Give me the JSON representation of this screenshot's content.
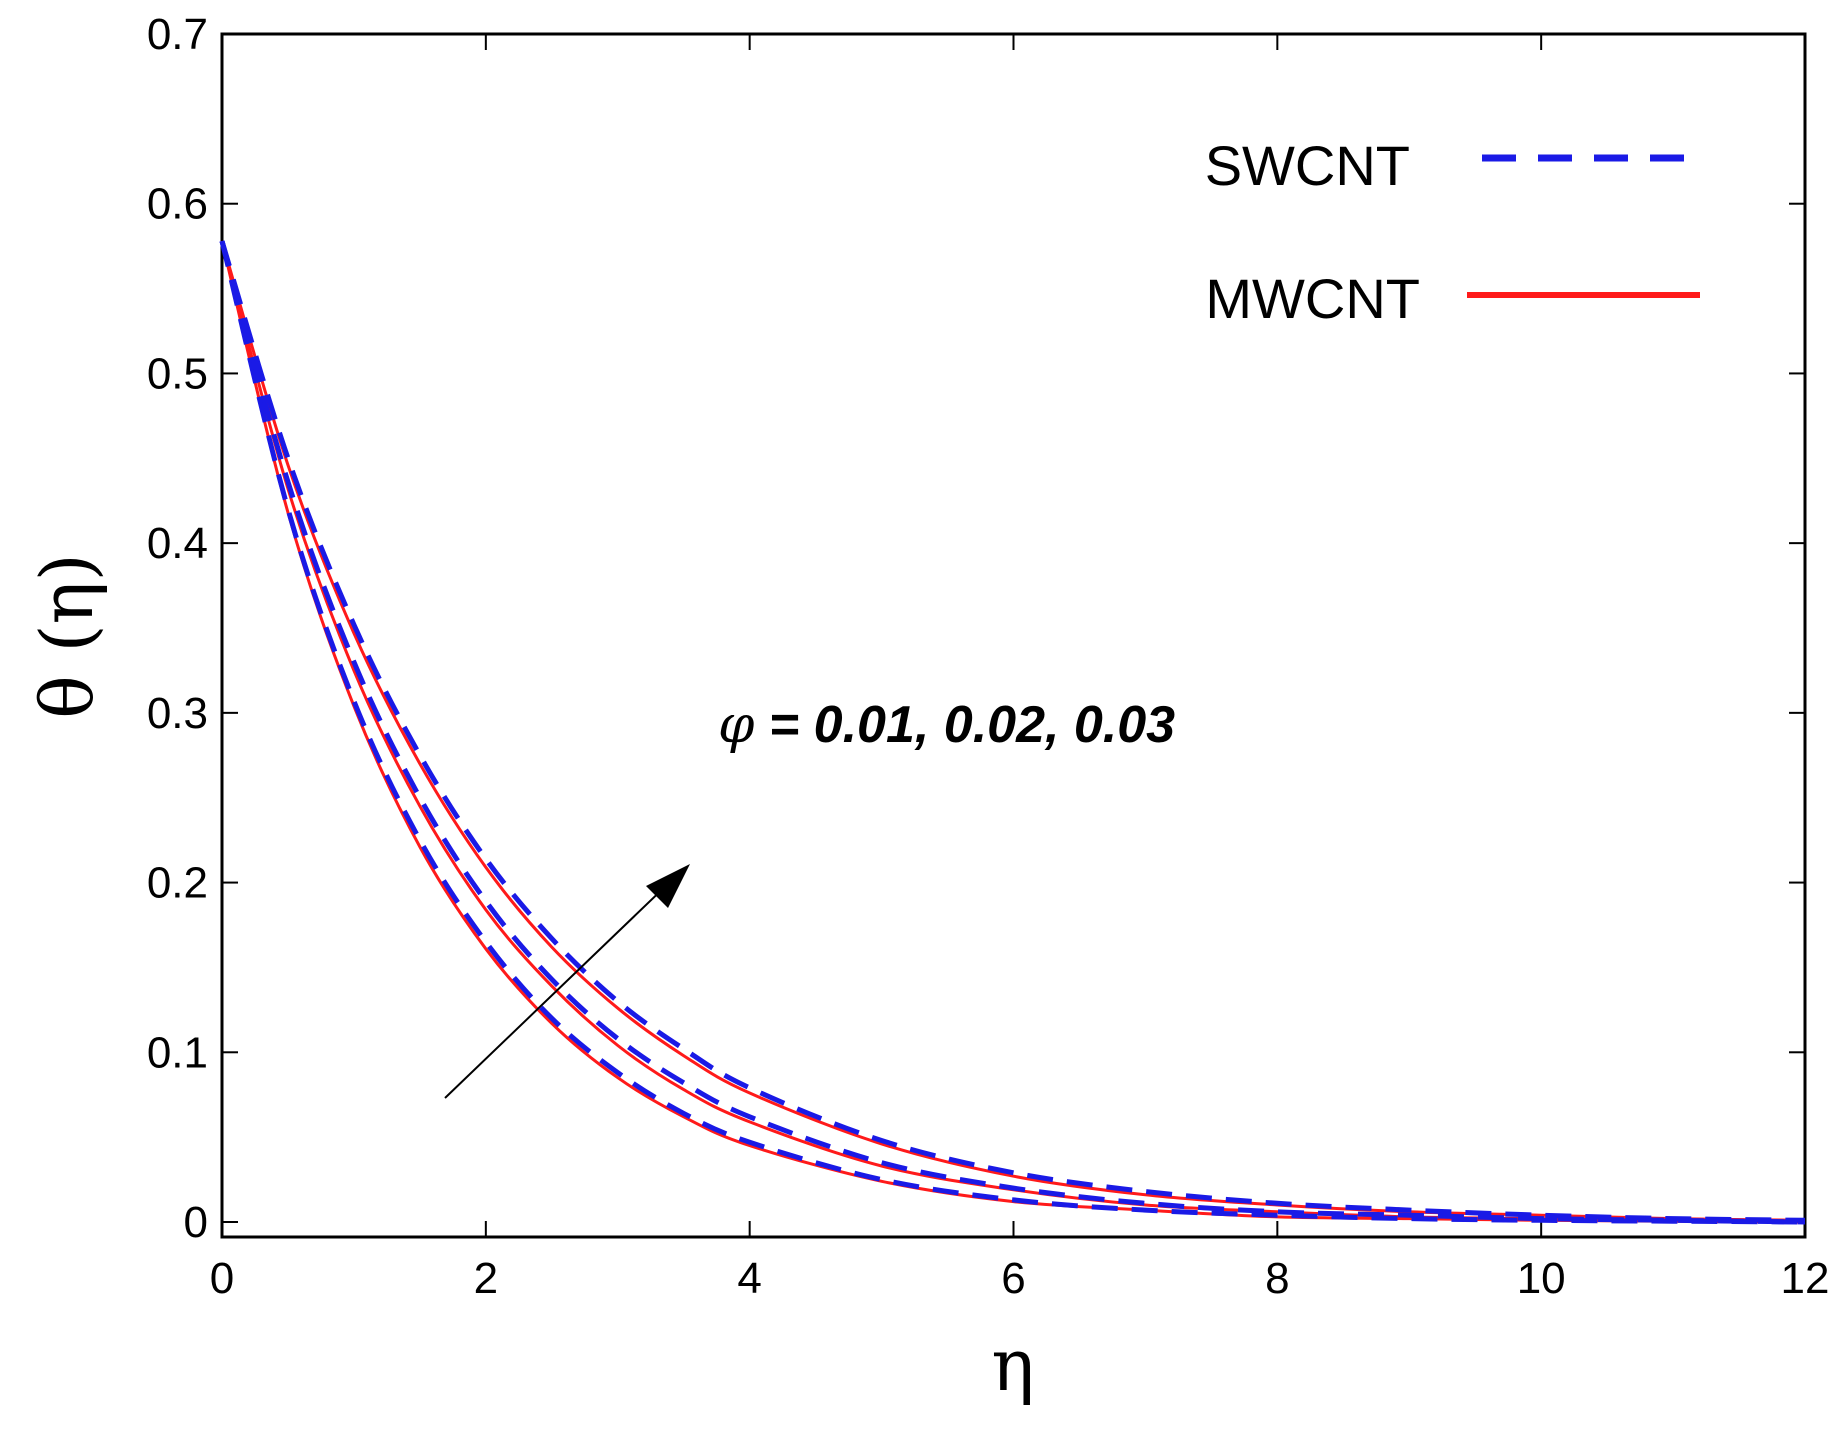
{
  "chart_data": {
    "type": "line",
    "xlabel": "η",
    "ylabel": "θ (η)",
    "xlim": [
      0,
      12
    ],
    "ylim": [
      0,
      0.7
    ],
    "xticks": [
      "0",
      "2",
      "4",
      "6",
      "8",
      "10",
      "12"
    ],
    "yticks": [
      "0",
      "0.1",
      "0.2",
      "0.3",
      "0.4",
      "0.5",
      "0.6",
      "0.7"
    ],
    "grid": false,
    "legend_position": "top-right",
    "annotation": {
      "symbol": "φ",
      "text": " = 0.01, 0.02, 0.03",
      "arrow": "increasing"
    },
    "x": [
      0,
      0.5,
      1,
      1.5,
      2,
      2.5,
      3,
      3.5,
      4,
      5,
      6,
      7,
      8,
      9,
      10,
      11,
      12
    ],
    "series": [
      {
        "name": "SWCNT",
        "style": "dashed",
        "color": "#1a1ae6",
        "curves": [
          [
            0.578,
            0.42,
            0.307,
            0.225,
            0.165,
            0.12,
            0.088,
            0.064,
            0.047,
            0.025,
            0.013,
            0.007,
            0.004,
            0.002,
            0.001,
            0.0005,
            0.0
          ],
          [
            0.578,
            0.436,
            0.33,
            0.25,
            0.189,
            0.143,
            0.108,
            0.082,
            0.062,
            0.035,
            0.02,
            0.011,
            0.006,
            0.004,
            0.002,
            0.001,
            0.0
          ],
          [
            0.578,
            0.45,
            0.352,
            0.275,
            0.214,
            0.167,
            0.13,
            0.102,
            0.079,
            0.048,
            0.029,
            0.018,
            0.011,
            0.007,
            0.004,
            0.002,
            0.001
          ]
        ]
      },
      {
        "name": "MWCNT",
        "style": "solid",
        "color": "#ff1a1a",
        "curves": [
          [
            0.578,
            0.418,
            0.304,
            0.221,
            0.161,
            0.117,
            0.085,
            0.062,
            0.045,
            0.024,
            0.012,
            0.007,
            0.003,
            0.002,
            0.001,
            0.0004,
            0.0
          ],
          [
            0.578,
            0.432,
            0.325,
            0.245,
            0.184,
            0.139,
            0.104,
            0.078,
            0.059,
            0.033,
            0.019,
            0.01,
            0.006,
            0.003,
            0.002,
            0.001,
            0.0
          ],
          [
            0.578,
            0.446,
            0.347,
            0.27,
            0.209,
            0.162,
            0.126,
            0.098,
            0.076,
            0.046,
            0.027,
            0.016,
            0.01,
            0.006,
            0.004,
            0.002,
            0.001
          ]
        ]
      }
    ]
  }
}
